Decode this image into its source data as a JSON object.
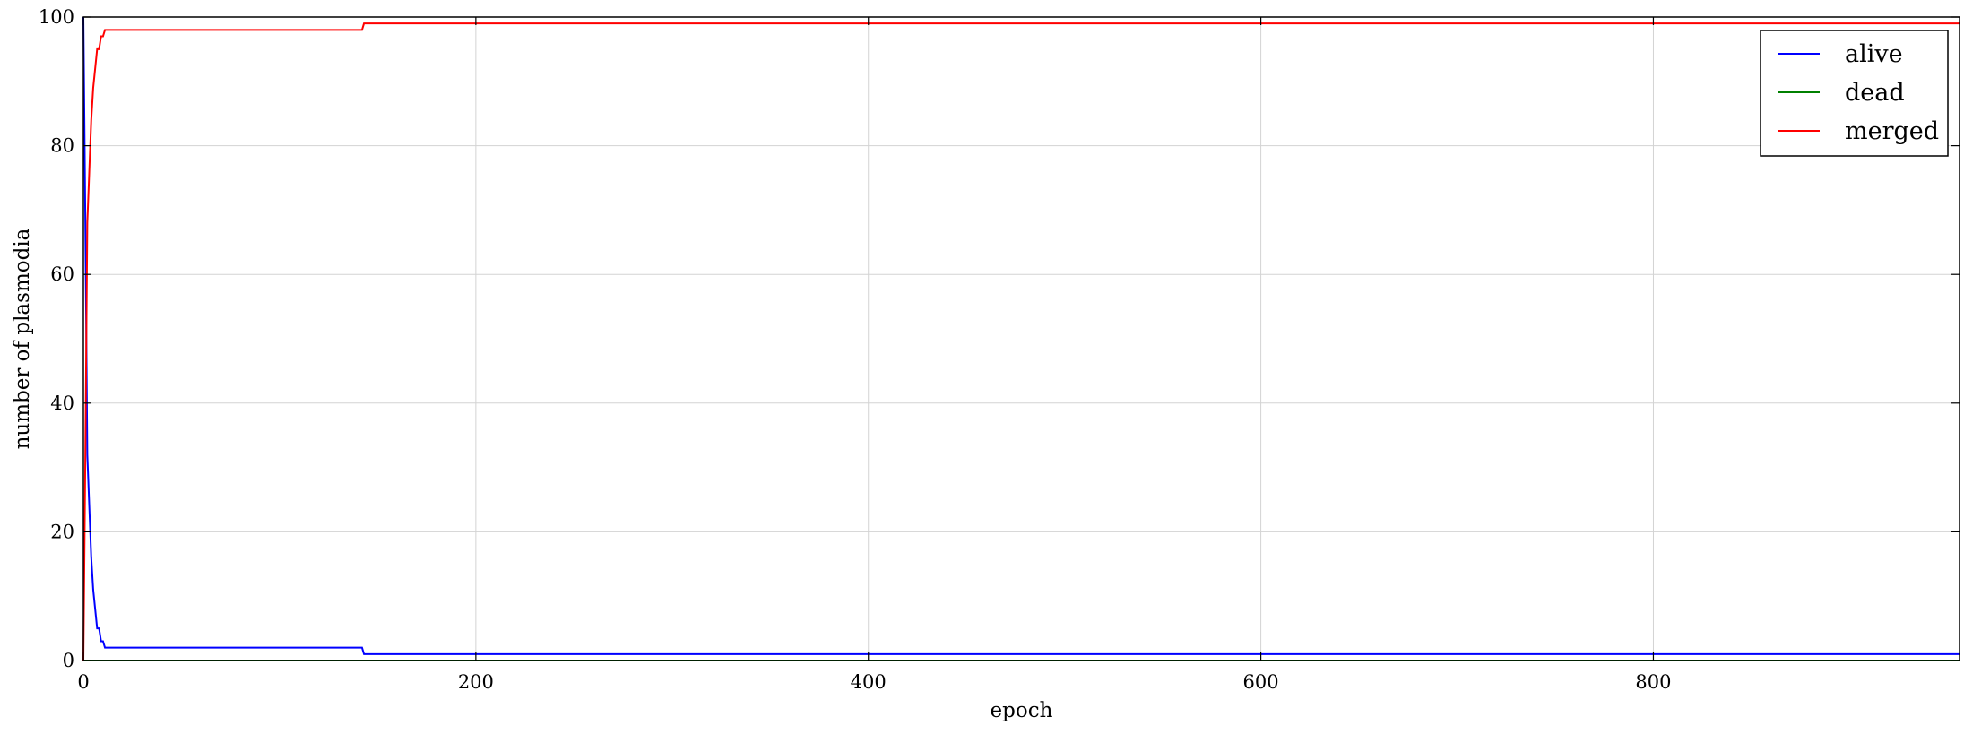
{
  "chart_data": {
    "type": "line",
    "title": "",
    "xlabel": "epoch",
    "ylabel": "number of plasmodia",
    "xlim": [
      0,
      956
    ],
    "ylim": [
      0,
      100
    ],
    "xticks": [
      0,
      200,
      400,
      600,
      800
    ],
    "yticks": [
      0,
      20,
      40,
      60,
      80,
      100
    ],
    "grid": true,
    "legend": "top-right",
    "series": [
      {
        "name": "alive",
        "color": "#0000ff",
        "points": [
          [
            0,
            100
          ],
          [
            1,
            68
          ],
          [
            2,
            32
          ],
          [
            3,
            24
          ],
          [
            4,
            16
          ],
          [
            5,
            11
          ],
          [
            6,
            8
          ],
          [
            7,
            5
          ],
          [
            8,
            5
          ],
          [
            9,
            3
          ],
          [
            10,
            3
          ],
          [
            11,
            2
          ],
          [
            12,
            2
          ],
          [
            142,
            2
          ],
          [
            143,
            1
          ],
          [
            956,
            1
          ]
        ]
      },
      {
        "name": "dead",
        "color": "#008000",
        "points": [
          [
            0,
            0
          ],
          [
            956,
            0
          ]
        ]
      },
      {
        "name": "merged",
        "color": "#ff0000",
        "points": [
          [
            0,
            0
          ],
          [
            1,
            32
          ],
          [
            2,
            68
          ],
          [
            3,
            76
          ],
          [
            4,
            84
          ],
          [
            5,
            89
          ],
          [
            6,
            92
          ],
          [
            7,
            95
          ],
          [
            8,
            95
          ],
          [
            9,
            97
          ],
          [
            10,
            97
          ],
          [
            11,
            98
          ],
          [
            12,
            98
          ],
          [
            142,
            98
          ],
          [
            143,
            99
          ],
          [
            956,
            99
          ]
        ]
      }
    ]
  }
}
